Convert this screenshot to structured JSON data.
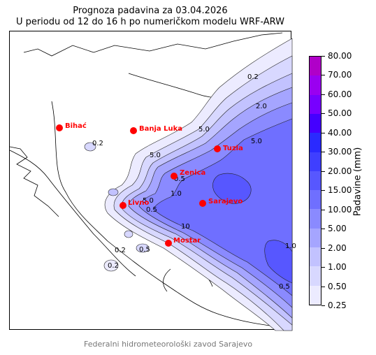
{
  "title": {
    "line1": "Prognoza padavina za 03.04.2026",
    "line2": "U periodu od 12 do 16 h po numeričkom modelu WRF-ARW"
  },
  "colorbar": {
    "label": "Padavine (mm)",
    "levels": [
      "0.25",
      "0.50",
      "1.00",
      "2.00",
      "5.00",
      "10.00",
      "15.00",
      "20.00",
      "30.00",
      "40.00",
      "50.00",
      "60.00",
      "70.00",
      "80.00"
    ],
    "colors": [
      "#ecebff",
      "#d8d8ff",
      "#c2c2ff",
      "#a5a5ff",
      "#8a8aff",
      "#6f6fff",
      "#5757ff",
      "#3f3fff",
      "#2a2aff",
      "#4400ff",
      "#7700ff",
      "#9a00f0",
      "#b000c8"
    ]
  },
  "cities": [
    {
      "name": "Bihać"
    },
    {
      "name": "Banja Luka"
    },
    {
      "name": "Tuzla"
    },
    {
      "name": "Zenica"
    },
    {
      "name": "Livno"
    },
    {
      "name": "Sarajevo"
    },
    {
      "name": "Mostar"
    }
  ],
  "contour_labels": [
    "0.2",
    "2.0",
    "5.0",
    "5.0",
    "0.2",
    "5.0",
    "0.5",
    "1.0",
    "5.0",
    "0.5",
    "10",
    "0.2",
    "0.5",
    "1.0",
    "0.2",
    "0.5"
  ],
  "footer": "Federalni hidrometeorološki zavod Sarajevo"
}
